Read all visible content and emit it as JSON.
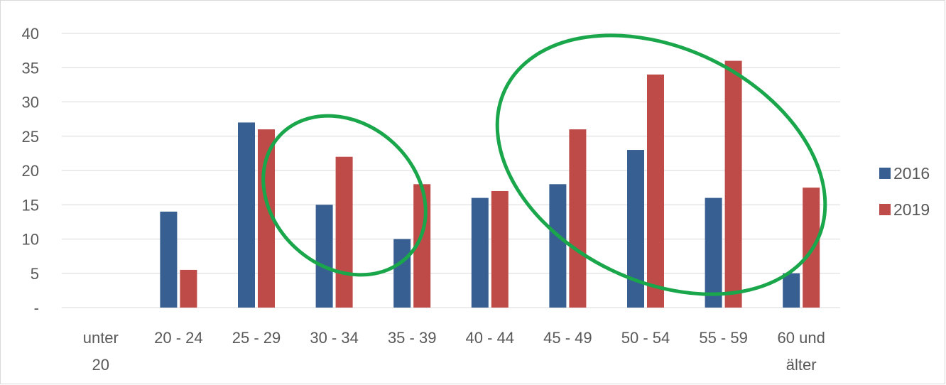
{
  "chart_data": {
    "type": "bar",
    "categories": [
      [
        "unter",
        "20"
      ],
      [
        "20 - 24"
      ],
      [
        "25 - 29"
      ],
      [
        "30 - 34"
      ],
      [
        "35 - 39"
      ],
      [
        "40 - 44"
      ],
      [
        "45 - 49"
      ],
      [
        "50 - 54"
      ],
      [
        "55 - 59"
      ],
      [
        "60 und",
        "älter"
      ]
    ],
    "series": [
      {
        "name": "2016",
        "color": "#375f92",
        "values": [
          0,
          14,
          27,
          15,
          10,
          16,
          18,
          23,
          16,
          5
        ]
      },
      {
        "name": "2019",
        "color": "#be4b48",
        "values": [
          0,
          5.5,
          26,
          22,
          18,
          17,
          26,
          34,
          36,
          17.5
        ]
      }
    ],
    "ylim": [
      0,
      40
    ],
    "yticks": [
      {
        "value": 0,
        "label": "-"
      },
      {
        "value": 5,
        "label": "5"
      },
      {
        "value": 10,
        "label": "10"
      },
      {
        "value": 15,
        "label": "15"
      },
      {
        "value": 20,
        "label": "20"
      },
      {
        "value": 25,
        "label": "25"
      },
      {
        "value": 30,
        "label": "30"
      },
      {
        "value": 35,
        "label": "35"
      },
      {
        "value": 40,
        "label": "40"
      }
    ],
    "grid": true,
    "legend_position": "right",
    "annotations": [
      {
        "type": "ellipse",
        "color": "#1aa64a",
        "around": [
          "30 - 34",
          "35 - 39"
        ]
      },
      {
        "type": "ellipse",
        "color": "#1aa64a",
        "around": [
          "45 - 49",
          "50 - 54",
          "55 - 59",
          "60 und älter"
        ]
      }
    ]
  }
}
